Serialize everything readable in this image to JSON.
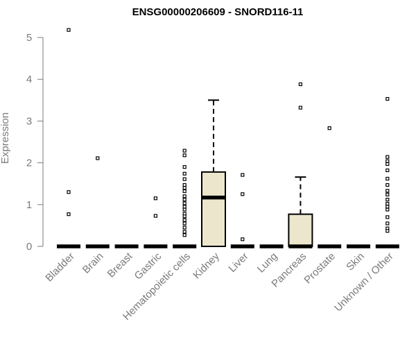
{
  "chart_data": {
    "type": "box",
    "title": "ENSG00000206609 - SNORD116-11",
    "xlabel": "",
    "ylabel": "Expression",
    "ylim": [
      0,
      5.2
    ],
    "yticks": [
      0,
      1,
      2,
      3,
      4,
      5
    ],
    "grid": false,
    "box_fill": "#ece6cd",
    "categories": [
      "Bladder",
      "Brain",
      "Breast",
      "Gastric",
      "Hematopoietic cells",
      "Kidney",
      "Liver",
      "Lung",
      "Pancreas",
      "Prostate",
      "Skin",
      "Unknown / Other"
    ],
    "boxes": [
      {
        "q1": 0,
        "median": 0,
        "q3": 0,
        "whisker_low": 0,
        "whisker_high": 0,
        "outliers": [
          5.18,
          1.3,
          0.77
        ]
      },
      {
        "q1": 0,
        "median": 0,
        "q3": 0,
        "whisker_low": 0,
        "whisker_high": 0,
        "outliers": [
          2.11
        ]
      },
      {
        "q1": 0,
        "median": 0,
        "q3": 0,
        "whisker_low": 0,
        "whisker_high": 0,
        "outliers": []
      },
      {
        "q1": 0,
        "median": 0,
        "q3": 0,
        "whisker_low": 0,
        "whisker_high": 0,
        "outliers": [
          1.15,
          0.73
        ]
      },
      {
        "q1": 0,
        "median": 0,
        "q3": 0,
        "whisker_low": 0,
        "whisker_high": 0,
        "outliers": [
          2.29,
          2.18,
          1.9,
          1.74,
          1.61,
          1.47,
          1.4,
          1.32,
          1.2,
          1.12,
          1.03,
          0.95,
          0.88,
          0.78,
          0.72,
          0.63,
          0.55,
          0.45,
          0.35,
          0.27
        ]
      },
      {
        "q1": 0,
        "median": 1.17,
        "q3": 1.78,
        "whisker_low": 0,
        "whisker_high": 3.5,
        "outliers": []
      },
      {
        "q1": 0,
        "median": 0,
        "q3": 0,
        "whisker_low": 0,
        "whisker_high": 0,
        "outliers": [
          1.71,
          1.25,
          0.17
        ]
      },
      {
        "q1": 0,
        "median": 0,
        "q3": 0,
        "whisker_low": 0,
        "whisker_high": 0,
        "outliers": []
      },
      {
        "q1": 0,
        "median": 0,
        "q3": 0.77,
        "whisker_low": 0,
        "whisker_high": 1.66,
        "outliers": [
          3.88,
          3.32
        ]
      },
      {
        "q1": 0,
        "median": 0,
        "q3": 0,
        "whisker_low": 0,
        "whisker_high": 0,
        "outliers": [
          2.83
        ]
      },
      {
        "q1": 0,
        "median": 0,
        "q3": 0,
        "whisker_low": 0,
        "whisker_high": 0,
        "outliers": []
      },
      {
        "q1": 0,
        "median": 0,
        "q3": 0,
        "whisker_low": 0,
        "whisker_high": 0,
        "outliers": [
          3.53,
          2.14,
          2.04,
          1.97,
          1.82,
          1.62,
          1.47,
          1.33,
          1.24,
          1.12,
          1.02,
          0.95,
          0.88,
          0.7,
          0.55,
          0.43,
          0.37
        ]
      }
    ]
  }
}
